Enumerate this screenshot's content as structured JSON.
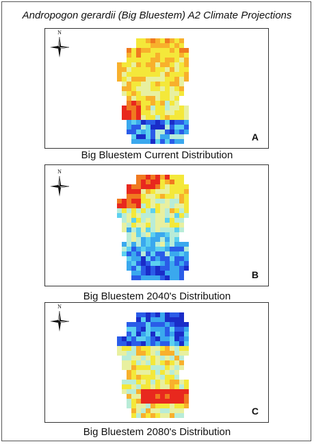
{
  "figure": {
    "title": "Andropogon gerardii (Big Bluestem) A2 Climate Projections"
  },
  "compass": {
    "label": "N"
  },
  "panels": [
    {
      "letter": "A",
      "caption": "Big Bluestem Current Distribution",
      "scenario": "current"
    },
    {
      "letter": "B",
      "caption": "Big Bluestem 2040's Distribution",
      "scenario": "2040"
    },
    {
      "letter": "C",
      "caption": "Big Bluestem 2080's Distribution",
      "scenario": "2080"
    }
  ],
  "colors": {
    "red": "#e8281e",
    "orange": "#f07a20",
    "light_orange": "#f8b02c",
    "yellow": "#f4e83a",
    "pale_yellow": "#e8f0a0",
    "pale_green": "#b8ecd8",
    "cyan": "#5cd0f0",
    "light_blue": "#3aa8ee",
    "blue": "#2a5ce8",
    "dark_blue": "#1a2cc8"
  }
}
